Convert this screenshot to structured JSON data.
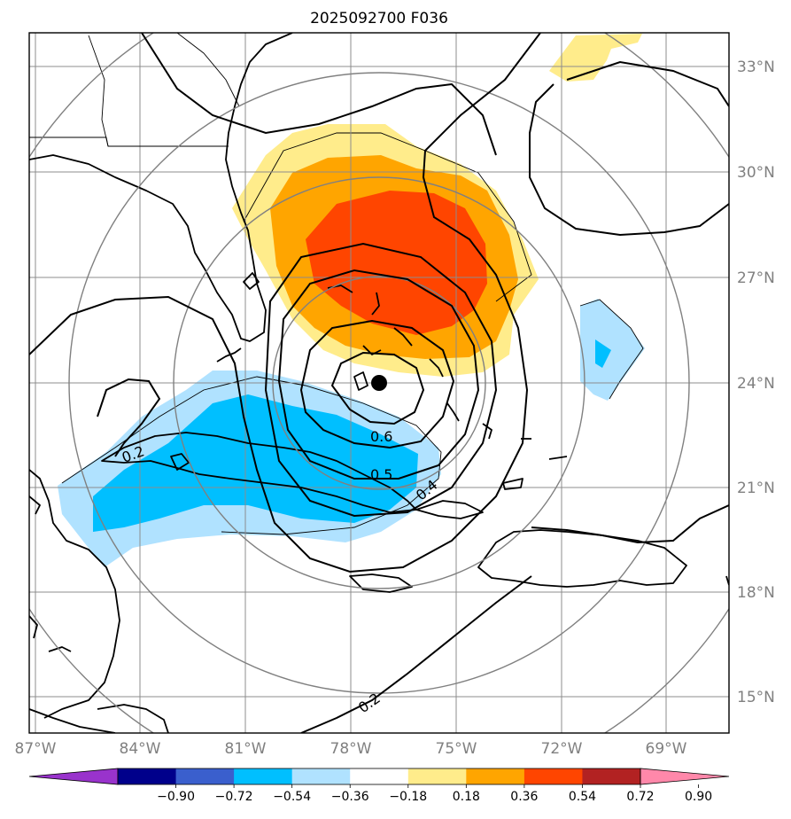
{
  "title": "2025092700 F036",
  "longitude_labels": [
    "87°W",
    "84°W",
    "81°W",
    "78°W",
    "75°W",
    "72°W",
    "69°W"
  ],
  "latitude_labels": [
    "33°N",
    "30°N",
    "27°N",
    "24°N",
    "21°N",
    "18°N",
    "15°N"
  ],
  "colorbar": {
    "tick_labels": [
      "−0.90",
      "−0.72",
      "−0.54",
      "−0.36",
      "−0.18",
      "0.18",
      "0.36",
      "0.54",
      "0.72",
      "0.90"
    ],
    "colors": [
      "#9933cc",
      "#00008b",
      "#3a5fcd",
      "#00bfff",
      "#b0e2ff",
      "#ffffff",
      "#ffec8b",
      "#ffa500",
      "#ff4500",
      "#b22222",
      "#ff88aa"
    ]
  },
  "contour_labels": [
    "0.6",
    "0.5",
    "0.4",
    "0.2",
    "0.2"
  ],
  "storm_center": {
    "lon": -77.3,
    "lat": 24.0
  },
  "colors": {
    "shade_light_blue": "#b0e2ff",
    "shade_blue": "#00bfff",
    "shade_yellow": "#ffec8b",
    "shade_orange": "#ffa500",
    "shade_red": "#ff4500"
  }
}
